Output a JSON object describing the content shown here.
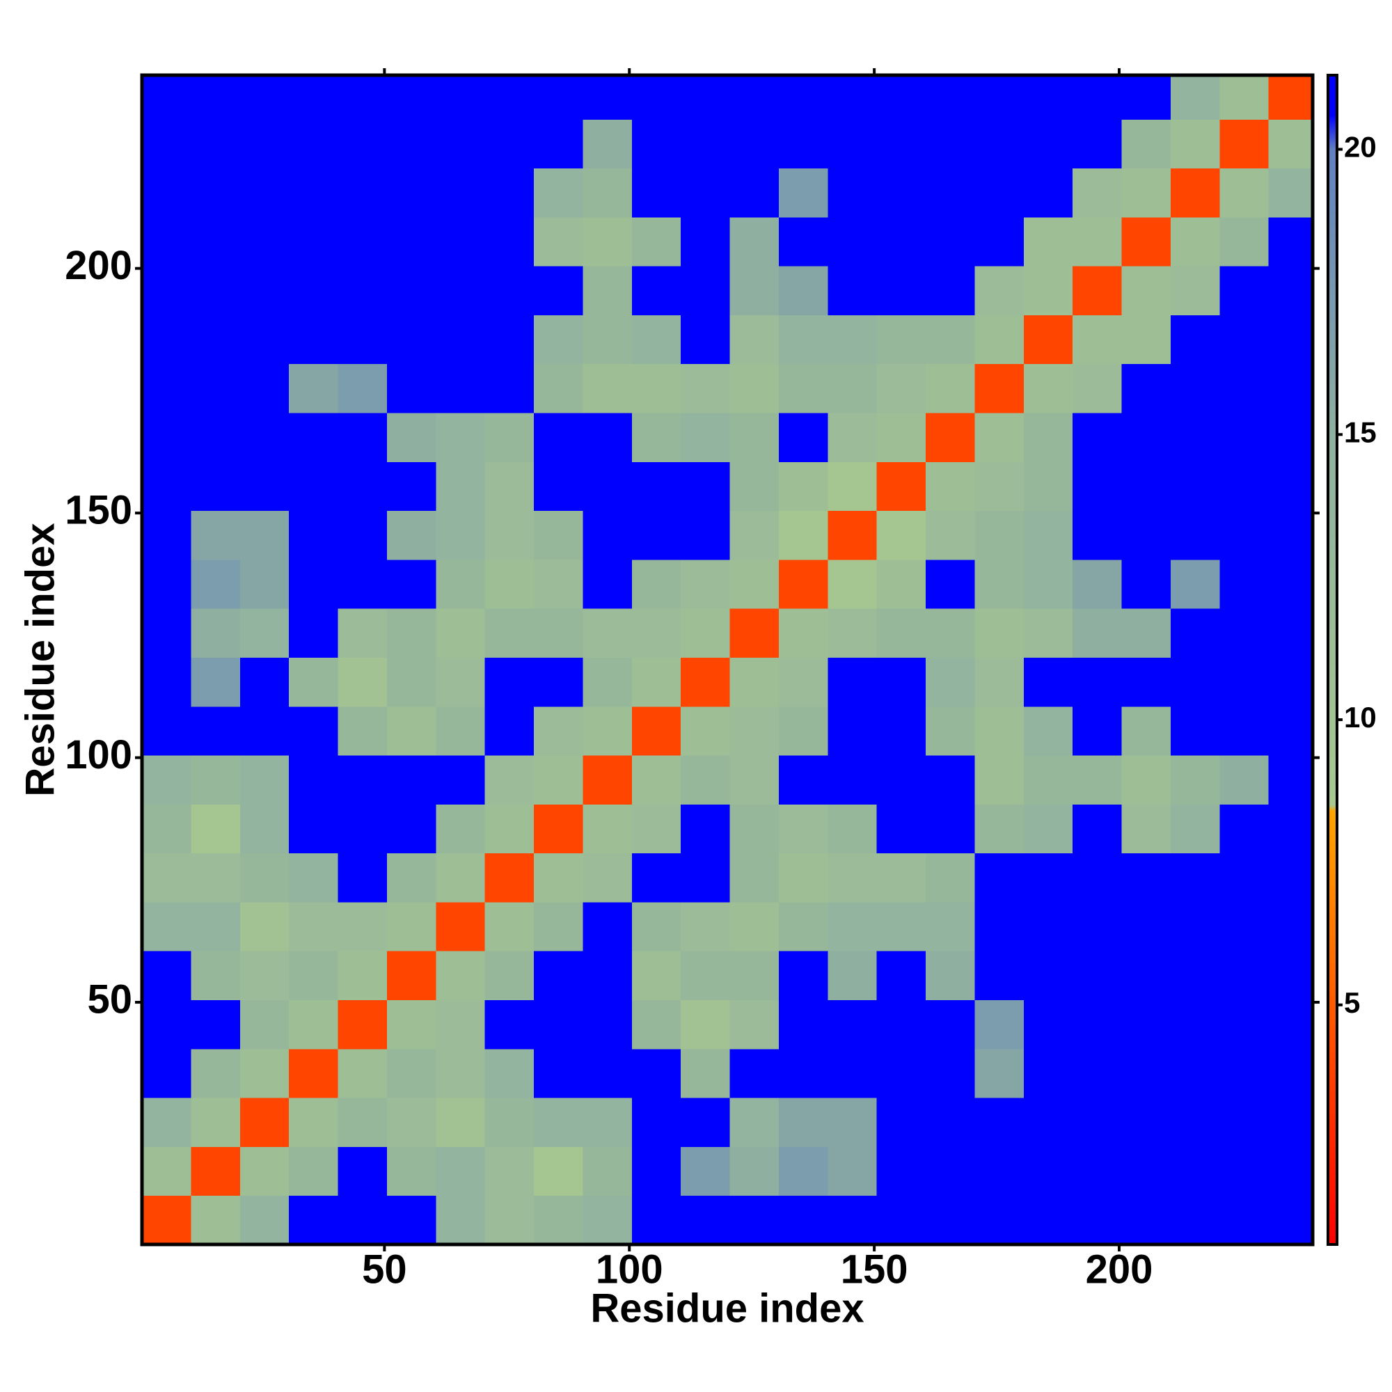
{
  "chart_data": {
    "type": "heatmap",
    "x_label": "Residue index",
    "y_label": "Residue index",
    "xlim": [
      0.5,
      239.5
    ],
    "ylim": [
      0.5,
      239.5
    ],
    "xticks": [
      50,
      100,
      150,
      200
    ],
    "yticks": [
      50,
      100,
      150,
      200
    ],
    "x_edges": [
      0.5,
      10.5,
      20.5,
      30.5,
      40.5,
      50.5,
      60.5,
      70.5,
      80.5,
      90.5,
      100.5,
      110.5,
      120.5,
      130.5,
      140.5,
      150.5,
      160.5,
      170.5,
      180.5,
      190.5,
      200.5,
      210.5,
      220.5,
      230.5,
      239.5
    ],
    "y_edges": [
      0.5,
      10.5,
      20.5,
      30.5,
      40.5,
      50.5,
      60.5,
      70.5,
      80.5,
      90.5,
      100.5,
      110.5,
      120.5,
      130.5,
      140.5,
      150.5,
      160.5,
      170.5,
      180.5,
      190.5,
      200.5,
      210.5,
      220.5,
      230.5,
      239.5
    ],
    "z": [
      [
        4,
        11,
        14,
        21,
        21,
        21,
        14,
        12,
        13,
        14,
        21,
        21,
        21,
        21,
        21,
        21,
        21,
        21,
        21,
        21,
        21,
        21,
        21,
        21
      ],
      [
        11,
        4,
        11,
        13,
        21,
        13,
        14,
        12,
        9,
        13,
        21,
        17,
        15,
        17,
        16,
        21,
        21,
        21,
        21,
        21,
        21,
        21,
        21,
        21
      ],
      [
        14,
        11,
        4,
        11,
        13,
        12,
        10,
        13,
        14,
        14,
        21,
        21,
        14,
        16,
        16,
        21,
        21,
        21,
        21,
        21,
        21,
        21,
        21,
        21
      ],
      [
        21,
        13,
        11,
        4,
        11,
        13,
        12,
        14,
        21,
        21,
        21,
        13,
        21,
        21,
        21,
        21,
        21,
        16,
        21,
        21,
        21,
        21,
        21,
        21
      ],
      [
        21,
        21,
        13,
        11,
        4,
        11,
        12,
        21,
        21,
        21,
        13,
        10,
        12,
        21,
        21,
        21,
        21,
        17,
        21,
        21,
        21,
        21,
        21,
        21
      ],
      [
        21,
        13,
        12,
        13,
        11,
        4,
        11,
        13,
        21,
        21,
        11,
        13,
        13,
        21,
        15,
        21,
        15,
        21,
        21,
        21,
        21,
        21,
        21,
        21
      ],
      [
        14,
        14,
        10,
        12,
        12,
        11,
        4,
        11,
        13,
        21,
        13,
        12,
        11,
        13,
        14,
        14,
        14,
        21,
        21,
        21,
        21,
        21,
        21,
        21
      ],
      [
        12,
        12,
        13,
        14,
        21,
        13,
        11,
        4,
        11,
        12,
        21,
        21,
        13,
        11,
        12,
        12,
        13,
        21,
        21,
        21,
        21,
        21,
        21,
        21
      ],
      [
        13,
        9,
        14,
        21,
        21,
        21,
        13,
        11,
        4,
        11,
        12,
        21,
        13,
        12,
        13,
        21,
        21,
        13,
        14,
        21,
        12,
        14,
        21,
        21
      ],
      [
        14,
        13,
        14,
        21,
        21,
        21,
        21,
        12,
        11,
        4,
        11,
        13,
        12,
        21,
        21,
        21,
        21,
        11,
        13,
        13,
        11,
        13,
        15,
        21
      ],
      [
        21,
        21,
        21,
        21,
        13,
        11,
        13,
        21,
        12,
        11,
        4,
        11,
        12,
        13,
        21,
        21,
        13,
        11,
        14,
        21,
        13,
        21,
        21,
        21
      ],
      [
        21,
        17,
        21,
        13,
        10,
        13,
        12,
        21,
        21,
        13,
        11,
        4,
        11,
        12,
        21,
        21,
        14,
        12,
        21,
        21,
        21,
        21,
        21,
        21
      ],
      [
        21,
        15,
        14,
        21,
        12,
        13,
        11,
        13,
        13,
        12,
        12,
        11,
        4,
        11,
        12,
        13,
        13,
        11,
        12,
        15,
        15,
        21,
        21,
        21
      ],
      [
        21,
        17,
        16,
        21,
        21,
        21,
        13,
        11,
        12,
        21,
        13,
        12,
        11,
        4,
        9,
        11,
        21,
        13,
        14,
        16,
        21,
        17,
        21,
        21
      ],
      [
        21,
        16,
        16,
        21,
        21,
        15,
        14,
        12,
        13,
        21,
        21,
        21,
        12,
        9,
        4,
        9,
        12,
        13,
        14,
        21,
        21,
        21,
        21,
        21
      ],
      [
        21,
        21,
        21,
        21,
        21,
        21,
        14,
        12,
        21,
        21,
        21,
        21,
        13,
        11,
        9,
        4,
        11,
        12,
        13,
        21,
        21,
        21,
        21,
        21
      ],
      [
        21,
        21,
        21,
        21,
        21,
        15,
        14,
        13,
        21,
        21,
        13,
        14,
        13,
        21,
        12,
        11,
        4,
        11,
        13,
        21,
        21,
        21,
        21,
        21
      ],
      [
        21,
        21,
        21,
        16,
        17,
        21,
        21,
        21,
        13,
        11,
        11,
        12,
        11,
        13,
        13,
        12,
        11,
        4,
        11,
        12,
        21,
        21,
        21,
        21
      ],
      [
        21,
        21,
        21,
        21,
        21,
        21,
        21,
        21,
        14,
        13,
        14,
        21,
        12,
        14,
        14,
        13,
        13,
        11,
        4,
        11,
        11,
        21,
        21,
        21
      ],
      [
        21,
        21,
        21,
        21,
        21,
        21,
        21,
        21,
        21,
        13,
        21,
        21,
        15,
        16,
        21,
        21,
        21,
        12,
        11,
        4,
        11,
        12,
        21,
        21
      ],
      [
        21,
        21,
        21,
        21,
        21,
        21,
        21,
        21,
        12,
        11,
        13,
        21,
        15,
        21,
        21,
        21,
        21,
        21,
        11,
        11,
        4,
        11,
        13,
        21
      ],
      [
        21,
        21,
        21,
        21,
        21,
        21,
        21,
        21,
        14,
        13,
        21,
        21,
        21,
        17,
        21,
        21,
        21,
        21,
        21,
        12,
        11,
        4,
        11,
        14
      ],
      [
        21,
        21,
        21,
        21,
        21,
        21,
        21,
        21,
        21,
        15,
        21,
        21,
        21,
        21,
        21,
        21,
        21,
        21,
        21,
        21,
        13,
        11,
        4,
        11
      ],
      [
        21,
        21,
        21,
        21,
        21,
        21,
        21,
        21,
        21,
        21,
        21,
        21,
        21,
        21,
        21,
        21,
        21,
        21,
        21,
        21,
        21,
        14,
        11,
        4
      ]
    ],
    "clim": [
      0.8,
      21.3
    ],
    "cticks": [
      5,
      10,
      15,
      20
    ],
    "colorscale": [
      [
        0.8,
        "#ff0000"
      ],
      [
        8.4,
        "#ffa500"
      ],
      [
        8.5,
        "#a8c890"
      ],
      [
        15,
        "#8fb0a0"
      ],
      [
        20,
        "#6080c0"
      ],
      [
        20.6,
        "#0000ff"
      ],
      [
        21.3,
        "#0000ff"
      ]
    ]
  }
}
